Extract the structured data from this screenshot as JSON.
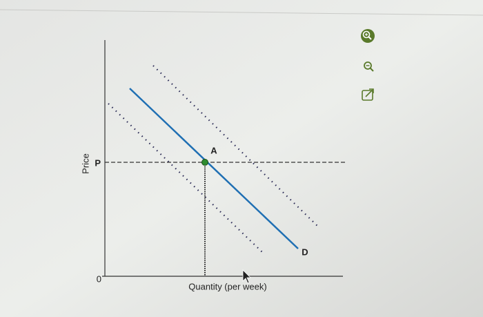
{
  "axes": {
    "y_label": "Price",
    "x_label": "Quantity (per week)",
    "price_label": "P",
    "origin_label": "0"
  },
  "points": [
    {
      "label": "A"
    }
  ],
  "curves": [
    {
      "label": "D"
    }
  ]
}
